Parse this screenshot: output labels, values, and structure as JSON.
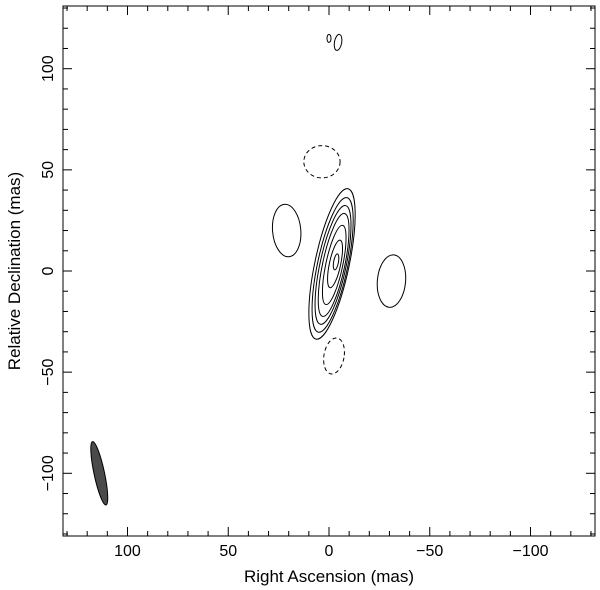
{
  "chart_data": {
    "type": "contour",
    "xlabel": "Right Ascension  (mas)",
    "ylabel": "Relative Declination  (mas)",
    "xlim": [
      132,
      -132
    ],
    "ylim": [
      -131,
      131
    ],
    "x_major_ticks": [
      100,
      50,
      0,
      -50,
      -100
    ],
    "x_tick_labels": [
      "100",
      "50",
      "0",
      "−50",
      "−100"
    ],
    "y_major_ticks": [
      100,
      50,
      0,
      -50,
      -100
    ],
    "y_tick_labels": [
      "100",
      "50",
      "0",
      "−50",
      "−100"
    ],
    "minor_tick_step": 10,
    "grid": false,
    "contours": [
      {
        "id": "core-1",
        "style": "solid",
        "cx": -1.5,
        "cy": 3.5,
        "a": 38,
        "b": 8.5,
        "tilt": 12
      },
      {
        "id": "core-2",
        "style": "solid",
        "cx": -1.8,
        "cy": 3.0,
        "a": 34,
        "b": 7.5,
        "tilt": 12
      },
      {
        "id": "core-3",
        "style": "solid",
        "cx": -2.0,
        "cy": 3.0,
        "a": 30,
        "b": 6.5,
        "tilt": 12
      },
      {
        "id": "core-4",
        "style": "solid",
        "cx": -2.3,
        "cy": 3.0,
        "a": 26,
        "b": 5.5,
        "tilt": 12
      },
      {
        "id": "core-5",
        "style": "solid",
        "cx": -2.6,
        "cy": 3.0,
        "a": 20,
        "b": 4.2,
        "tilt": 12
      },
      {
        "id": "core-6",
        "style": "solid",
        "cx": -3.0,
        "cy": 3.5,
        "a": 12,
        "b": 2.8,
        "tilt": 12
      },
      {
        "id": "core-7",
        "style": "solid",
        "cx": -3.5,
        "cy": 4.5,
        "a": 4,
        "b": 1.2,
        "tilt": 10
      },
      {
        "id": "east-lobe",
        "style": "solid",
        "cx": 21,
        "cy": 20,
        "a": 13,
        "b": 7,
        "tilt": -5
      },
      {
        "id": "west-lobe",
        "style": "solid",
        "cx": -31,
        "cy": -5,
        "a": 13,
        "b": 7,
        "tilt": 5
      },
      {
        "id": "north-small-1",
        "style": "solid",
        "cx": -4.5,
        "cy": 113,
        "a": 4,
        "b": 1.8,
        "tilt": 10
      },
      {
        "id": "north-small-2",
        "style": "solid",
        "cx": 0,
        "cy": 115,
        "a": 2,
        "b": 1,
        "tilt": 0
      },
      {
        "id": "north-dashed",
        "style": "dashed",
        "cx": 3.5,
        "cy": 54,
        "a": 8,
        "b": 9,
        "tilt": 0
      },
      {
        "id": "south-dashed",
        "style": "dashed",
        "cx": -2.5,
        "cy": -42,
        "a": 9,
        "b": 5,
        "tilt": 10
      }
    ],
    "beam": {
      "cx": 114,
      "cy": -100,
      "a": 16,
      "b": 2.6,
      "tilt": -12,
      "color": "#4a4a4a"
    }
  }
}
